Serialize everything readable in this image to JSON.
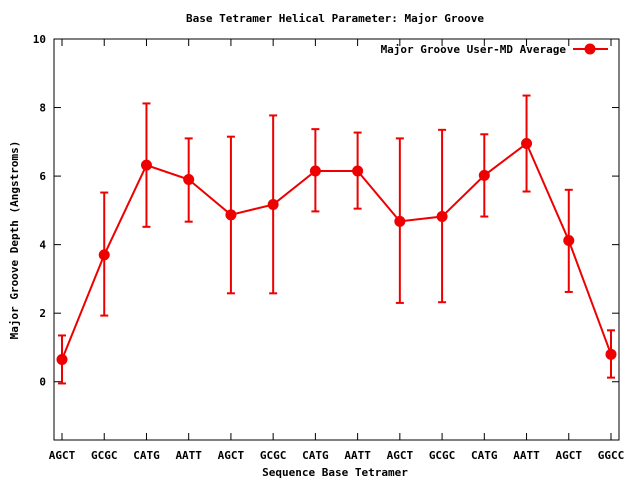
{
  "chart_data": {
    "type": "line",
    "title": "Base Tetramer Helical Parameter: Major Groove",
    "xlabel": "Sequence Base Tetramer",
    "ylabel": "Major Groove Depth (Angstroms)",
    "ylim": [
      -1.7,
      10
    ],
    "yticks": [
      0,
      2,
      4,
      6,
      8,
      10
    ],
    "grid": false,
    "legend_position": "top-right",
    "color": "#ee0000",
    "categories": [
      "AGCT",
      "GCGC",
      "CATG",
      "AATT",
      "AGCT",
      "GCGC",
      "CATG",
      "AATT",
      "AGCT",
      "GCGC",
      "CATG",
      "AATT",
      "AGCT",
      "GGCC"
    ],
    "series": [
      {
        "name": "Major Groove User-MD Average",
        "values": [
          0.65,
          3.7,
          6.32,
          5.9,
          4.87,
          5.17,
          6.15,
          6.15,
          4.68,
          4.82,
          6.02,
          6.95,
          4.12,
          0.8
        ],
        "error_low": [
          -0.05,
          1.93,
          4.52,
          4.67,
          2.58,
          2.58,
          4.97,
          5.05,
          2.3,
          2.32,
          4.82,
          5.55,
          2.62,
          0.12
        ],
        "error_high": [
          1.35,
          5.52,
          8.12,
          7.1,
          7.15,
          7.77,
          7.37,
          7.27,
          7.1,
          7.35,
          7.22,
          8.35,
          5.6,
          1.5
        ]
      }
    ]
  }
}
